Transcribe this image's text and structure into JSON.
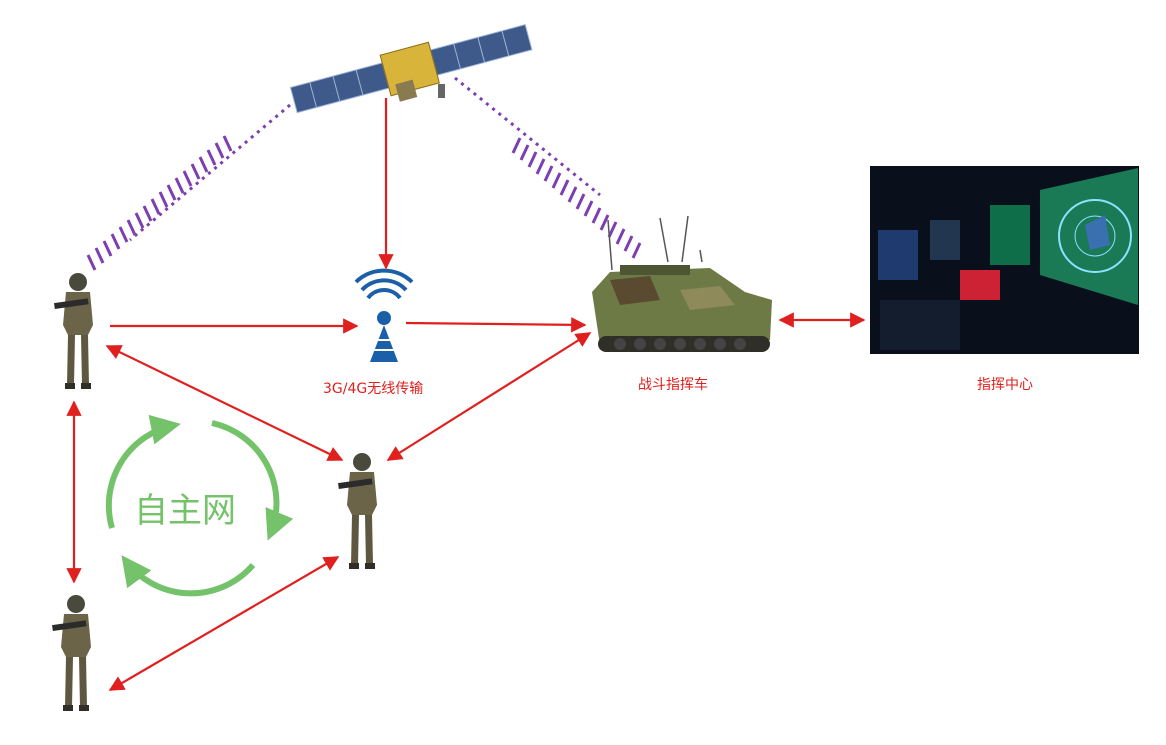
{
  "labels": {
    "wireless": "3G/4G无线传输",
    "vehicle": "战斗指挥车",
    "command_center": "指挥中心",
    "ad_hoc_network": "自主网"
  },
  "icons": {
    "satellite": "satellite-icon",
    "wireless_tower": "wireless-tower-icon",
    "vehicle": "armored-command-vehicle-icon",
    "command_center": "command-center-screens-icon",
    "soldier": "soldier-icon"
  },
  "colors": {
    "link_arrow": "#e0201e",
    "satellite_signal": "#7d3fb0",
    "ad_hoc_loop": "#74c26a",
    "tower": "#1b5fa8"
  }
}
